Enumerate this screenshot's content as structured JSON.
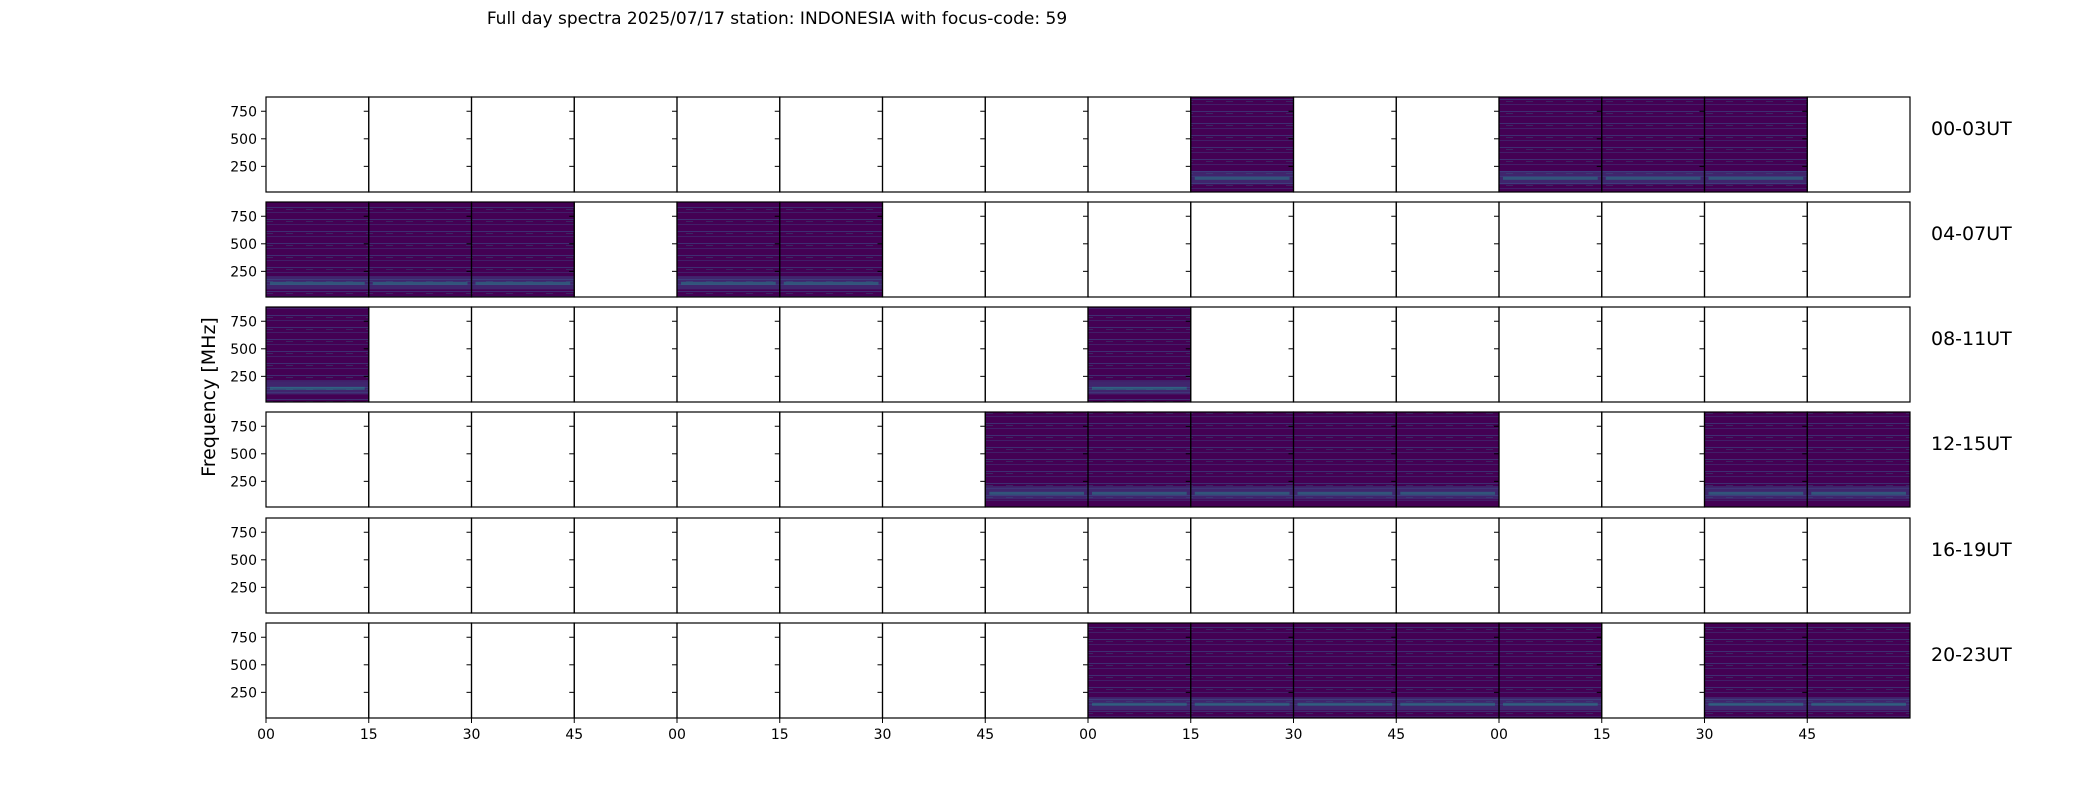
{
  "chart_data": {
    "type": "heatmap",
    "title": "Full day spectra 2025/07/17 station: INDONESIA with focus-code: 59",
    "ylabel": "Frequency [MHz]",
    "y_ticks": [
      "750",
      "500",
      "250"
    ],
    "x_ticks": [
      "00",
      "15",
      "30",
      "45",
      "00",
      "15",
      "30",
      "45",
      "00",
      "15",
      "30",
      "45",
      "00",
      "15",
      "30",
      "45"
    ],
    "colormap": {
      "low": "#440154",
      "mid": "#3b528b",
      "high": "#21918c",
      "hot": "#5ec962"
    },
    "rows": [
      {
        "label": "00-03UT",
        "cells": [
          0,
          0,
          0,
          0,
          0,
          0,
          0,
          0,
          0,
          1,
          0,
          0,
          1,
          1,
          1,
          0
        ]
      },
      {
        "label": "04-07UT",
        "cells": [
          1,
          1,
          1,
          0,
          1,
          1,
          0,
          0,
          0,
          0,
          0,
          0,
          0,
          0,
          0,
          0
        ]
      },
      {
        "label": "08-11UT",
        "cells": [
          1,
          0,
          0,
          0,
          0,
          0,
          0,
          0,
          1,
          0,
          0,
          0,
          0,
          0,
          0,
          0
        ]
      },
      {
        "label": "12-15UT",
        "cells": [
          0,
          0,
          0,
          0,
          0,
          0,
          0,
          1,
          1,
          1,
          1,
          1,
          0,
          0,
          1,
          1
        ]
      },
      {
        "label": "16-19UT",
        "cells": [
          0,
          0,
          0,
          0,
          0,
          0,
          0,
          0,
          0,
          0,
          0,
          0,
          0,
          0,
          0,
          0
        ]
      },
      {
        "label": "20-23UT",
        "cells": [
          0,
          0,
          0,
          0,
          0,
          0,
          0,
          0,
          1,
          1,
          1,
          1,
          1,
          0,
          1,
          1
        ]
      }
    ]
  }
}
